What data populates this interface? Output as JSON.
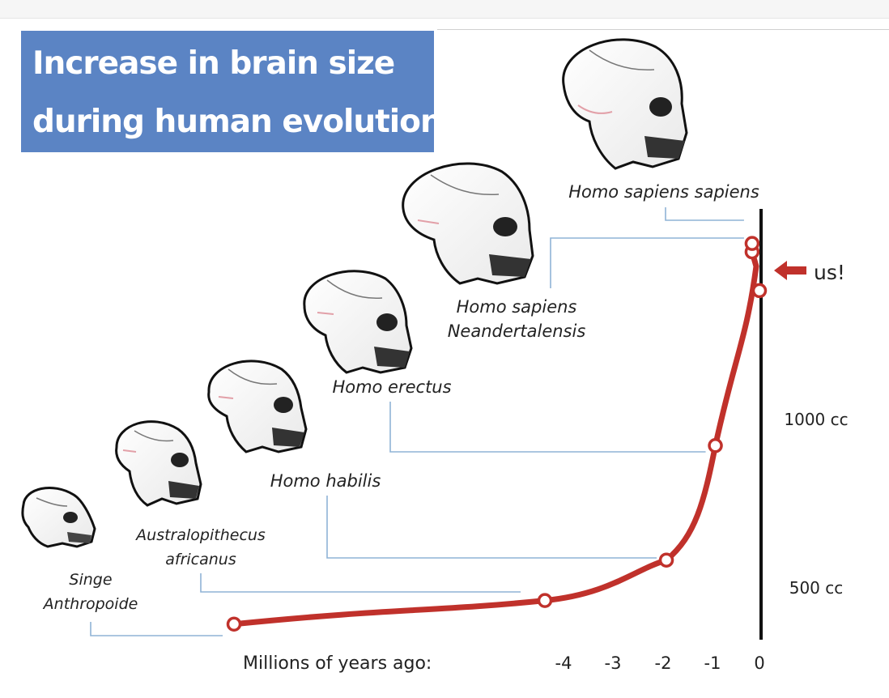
{
  "chart_data": {
    "type": "line",
    "title_lines": [
      "Increase in brain size",
      "during human evolution"
    ],
    "xlabel": "Millions of years ago:",
    "x_ticks": [
      -4,
      -3,
      -2,
      -1,
      0
    ],
    "x_tick_labels": [
      "-4",
      "-3",
      "-2",
      "-1",
      "0"
    ],
    "xlim": [
      -10.5,
      0.15
    ],
    "y_ticks": [
      500,
      1000
    ],
    "y_tick_labels": [
      "500 cc",
      "1000 cc"
    ],
    "ylim": [
      300,
      1650
    ],
    "points": [
      {
        "x": -10.5,
        "y": 390,
        "label_lines": [
          "Singe",
          "Anthropoide"
        ]
      },
      {
        "x": -4.3,
        "y": 460,
        "label_lines": [
          "Australopithecus",
          "africanus"
        ]
      },
      {
        "x": -1.9,
        "y": 580,
        "label_lines": [
          "Homo habilis"
        ]
      },
      {
        "x": -0.9,
        "y": 920,
        "label_lines": [
          "Homo erectus"
        ]
      },
      {
        "x": 0.0,
        "y": 1380,
        "label_lines": [
          "us!"
        ]
      },
      {
        "x": -0.15,
        "y": 1495,
        "label_lines": [
          "Homo sapiens",
          "Neandertalensis"
        ]
      },
      {
        "x": -0.15,
        "y": 1520,
        "label_lines": [
          "Homo sapiens sapiens"
        ]
      }
    ],
    "curve_color": "#c0312b",
    "leader_color": "#8fb3d6",
    "axis_color": "#111111"
  }
}
